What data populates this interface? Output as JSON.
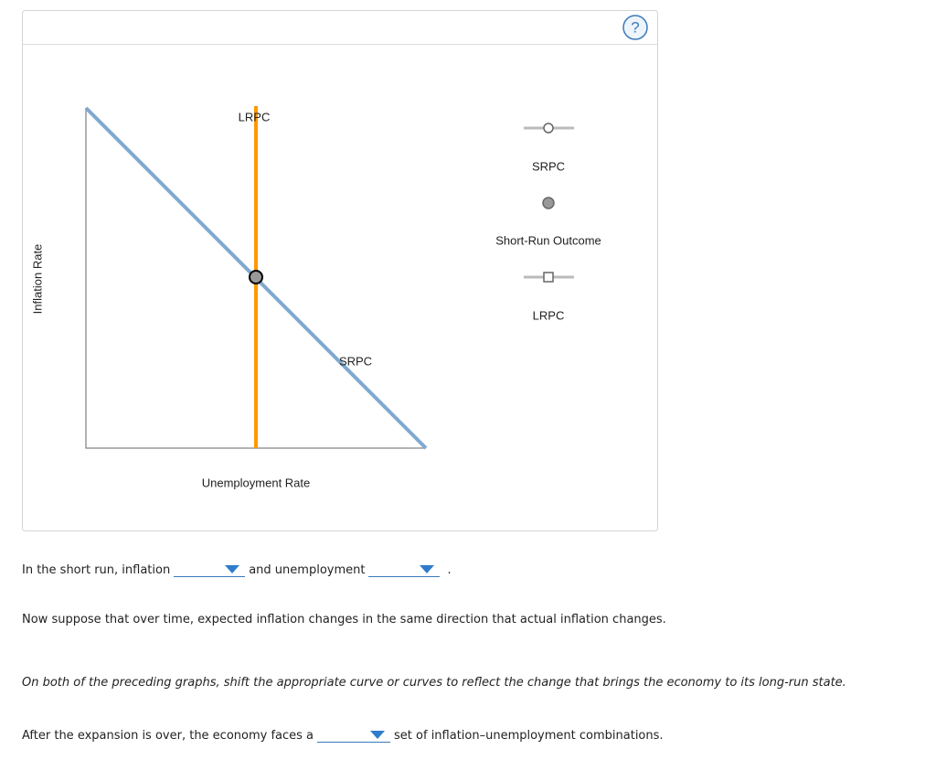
{
  "graph": {
    "y_axis_label": "Inflation Rate",
    "x_axis_label": "Unemployment Rate",
    "curve_labels": [
      "LRPC",
      "SRPC"
    ],
    "help": "?",
    "legend": [
      "SRPC",
      "Short-Run Outcome",
      "LRPC"
    ]
  },
  "questions": {
    "q1": {
      "before": "In the short run, inflation",
      "middle": "and unemployment",
      "after": "."
    },
    "statement": "Now suppose that over time, expected inflation changes in the same direction that actual inflation changes.",
    "instruction": "On both of the preceding graphs, shift the appropriate curve or curves to reflect the change that brings the economy to its long-run state.",
    "q2": {
      "before": "After the expansion is over, the economy faces a",
      "after": "set of inflation–unemployment combinations."
    }
  }
}
